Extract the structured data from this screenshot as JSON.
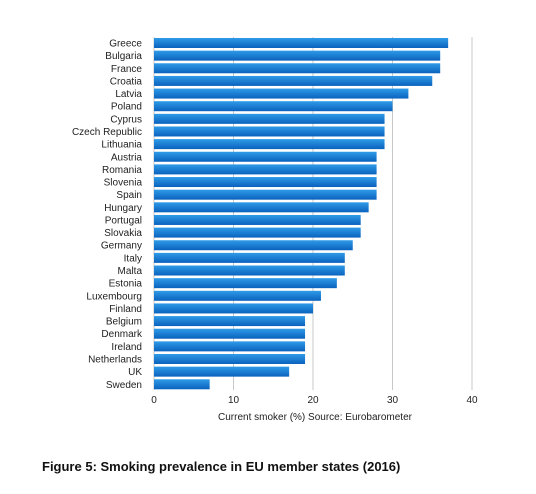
{
  "figure_caption": "Figure 5: Smoking prevalence in EU member states (2016)",
  "chart_data": {
    "type": "bar",
    "orientation": "horizontal",
    "categories": [
      "Greece",
      "Bulgaria",
      "France",
      "Croatia",
      "Latvia",
      "Poland",
      "Cyprus",
      "Czech Republic",
      "Lithuania",
      "Austria",
      "Romania",
      "Slovenia",
      "Spain",
      "Hungary",
      "Portugal",
      "Slovakia",
      "Germany",
      "Italy",
      "Malta",
      "Estonia",
      "Luxembourg",
      "Finland",
      "Belgium",
      "Denmark",
      "Ireland",
      "Netherlands",
      "UK",
      "Sweden"
    ],
    "values": [
      37,
      36,
      36,
      35,
      32,
      30,
      29,
      29,
      29,
      28,
      28,
      28,
      28,
      27,
      26,
      26,
      25,
      24,
      24,
      23,
      21,
      20,
      19,
      19,
      19,
      19,
      17,
      7
    ],
    "xlabel": "Current smoker (%) Source: Eurobarometer",
    "ylabel": "",
    "xlim": [
      0,
      40
    ],
    "xticks": [
      "0",
      "10",
      "20",
      "30",
      "40"
    ],
    "grid": true,
    "colors": {
      "bar_top": "#2f9be8",
      "bar_bottom": "#0a62bd",
      "grid": "#c8c8c8"
    }
  }
}
